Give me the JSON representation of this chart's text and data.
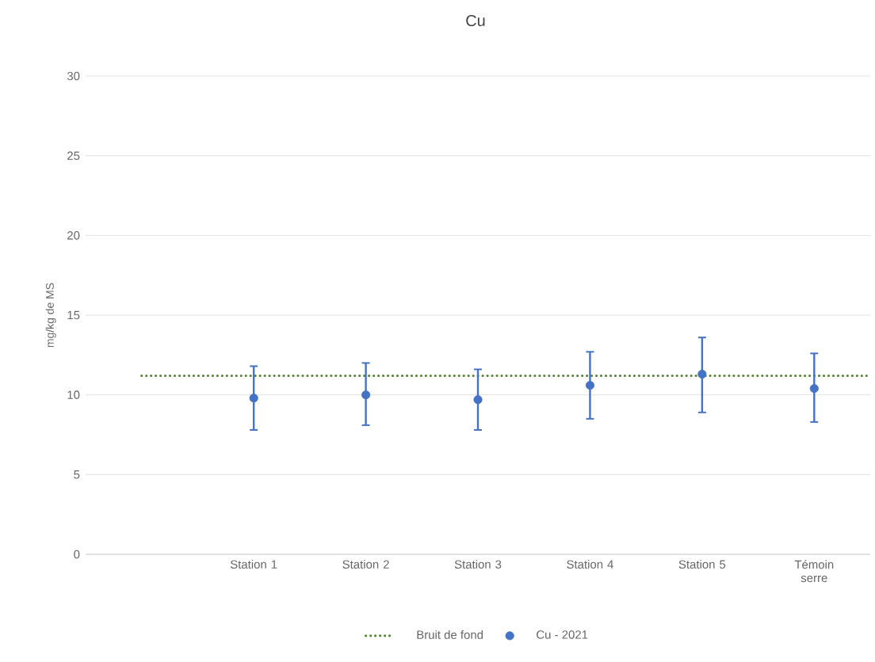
{
  "chart_data": {
    "type": "scatter",
    "title": "Cu",
    "ylabel": "mg/kg de MS",
    "categories": [
      null,
      "Station 1",
      "Station 2",
      "Station 3",
      "Station 4",
      "Station 5",
      "Témoin serre"
    ],
    "series": [
      {
        "name": "Cu - 2021",
        "color": "#4472c4",
        "values": [
          null,
          9.8,
          10.0,
          9.7,
          10.6,
          11.3,
          10.4
        ],
        "errors": [
          null,
          [
            7.8,
            11.8
          ],
          [
            8.1,
            12.0
          ],
          [
            7.8,
            11.6
          ],
          [
            8.5,
            12.7
          ],
          [
            8.9,
            13.6
          ],
          [
            8.3,
            12.6
          ]
        ]
      }
    ],
    "ref_lines": [
      {
        "axis": "y",
        "value": 11.2,
        "label": "Bruit de fond",
        "color": "#548235",
        "line_style": "dotted"
      }
    ],
    "ylim": [
      0,
      30
    ],
    "yticks": [
      0,
      5,
      10,
      15,
      20,
      25,
      30
    ],
    "grid": "y",
    "legend": "bottom",
    "marker": "circle"
  }
}
